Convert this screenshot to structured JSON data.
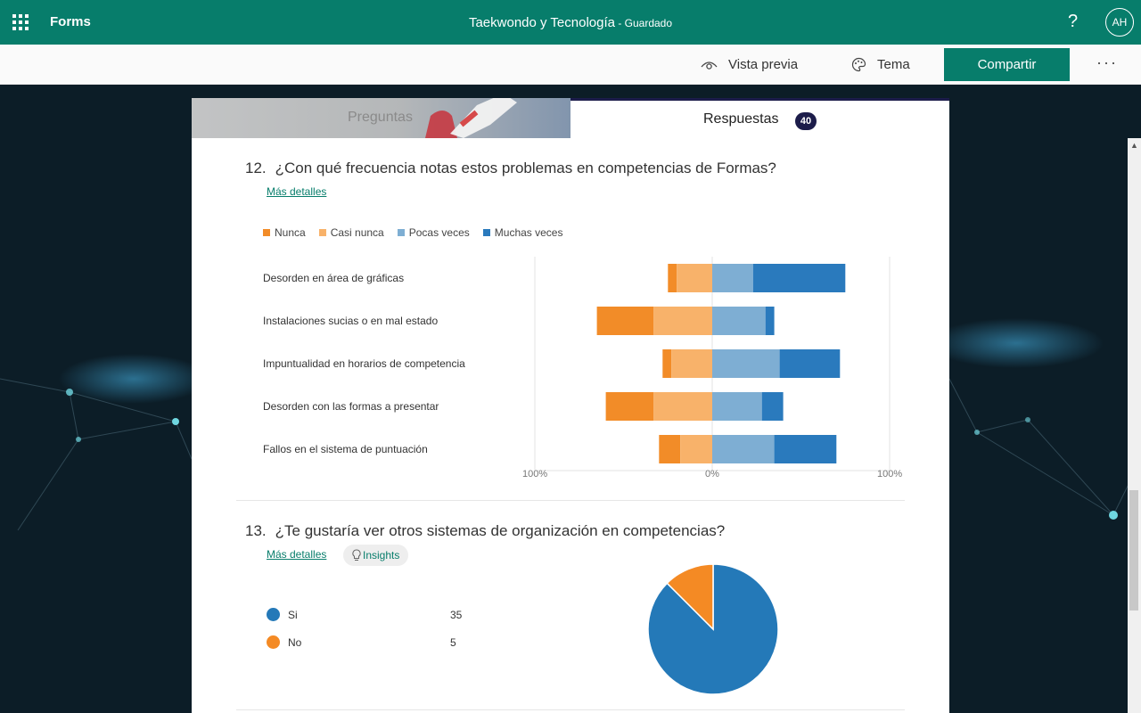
{
  "topbar": {
    "app_name": "Forms",
    "doc_title": "Taekwondo y Tecnología",
    "separator": " - ",
    "saved_status": "Guardado",
    "help": "?",
    "avatar_initials": "AH"
  },
  "commands": {
    "preview": "Vista previa",
    "theme": "Tema",
    "share": "Compartir",
    "more": "···"
  },
  "tabs": {
    "questions": "Preguntas",
    "responses": "Respuestas",
    "responses_count": "40"
  },
  "colors": {
    "brand": "#077d6b",
    "nunca": "#f28c28",
    "casi_nunca": "#f8b26a",
    "pocas_veces": "#7eaed3",
    "muchas_veces": "#2a7abd",
    "pie_si": "#2479b8",
    "pie_no": "#f48a24"
  },
  "q12": {
    "number": "12.",
    "title": "¿Con qué frecuencia notas estos problemas en competencias de Formas?",
    "more_details": "Más detalles"
  },
  "q13": {
    "number": "13.",
    "title": "¿Te gustaría ver otros sistemas de organización en competencias?",
    "more_details": "Más detalles",
    "insights": "Insights"
  },
  "chart_data": [
    {
      "type": "bar",
      "orientation": "horizontal",
      "stacked": "diverging",
      "legend_position": "top-left",
      "categories": [
        "Desorden en área de gráficas",
        "Instalaciones sucias o en mal estado",
        "Impuntualidad en horarios de competencia",
        "Desorden con las formas a presentar",
        "Fallos en el sistema de puntuación"
      ],
      "series": [
        {
          "name": "Nunca",
          "values": [
            5,
            32,
            5,
            27,
            12
          ]
        },
        {
          "name": "Casi nunca",
          "values": [
            20,
            33,
            23,
            33,
            18
          ]
        },
        {
          "name": "Pocas veces",
          "values": [
            23,
            30,
            38,
            28,
            35
          ]
        },
        {
          "name": "Muchas veces",
          "values": [
            52,
            5,
            34,
            12,
            35
          ]
        }
      ],
      "x_ticks": [
        "100%",
        "0%",
        "100%"
      ],
      "xlim": [
        -100,
        100
      ]
    },
    {
      "type": "pie",
      "categories": [
        "Si",
        "No"
      ],
      "values": [
        35,
        5
      ]
    }
  ]
}
